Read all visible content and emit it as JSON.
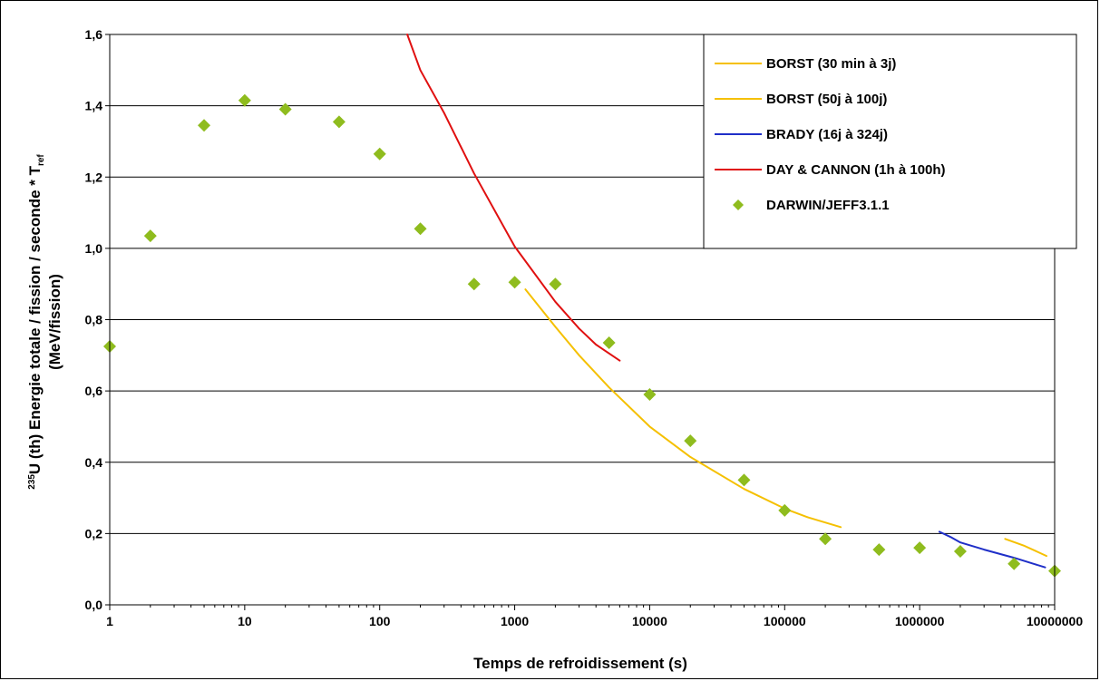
{
  "chart_data": {
    "type": "scatter",
    "xscale": "log",
    "xlim": [
      1,
      10000000
    ],
    "ylim": [
      0,
      1.6
    ],
    "grid": "horizontal",
    "legend_position": "top-right",
    "xlabel": "Temps de refroidissement (s)",
    "ylabel": {
      "sup": "235",
      "line1": "U (th) Energie totale / fission / seconde * T",
      "sub": "ref",
      "line2": "(MeV/fission)"
    },
    "x_ticks": [
      {
        "value": 1,
        "label": "1"
      },
      {
        "value": 10,
        "label": "10"
      },
      {
        "value": 100,
        "label": "100"
      },
      {
        "value": 1000,
        "label": "1000"
      },
      {
        "value": 10000,
        "label": "10000"
      },
      {
        "value": 100000,
        "label": "100000"
      },
      {
        "value": 1000000,
        "label": "1000000"
      },
      {
        "value": 10000000,
        "label": "10000000"
      }
    ],
    "y_ticks": [
      {
        "value": 0,
        "label": "0,0"
      },
      {
        "value": 0.2,
        "label": "0,2"
      },
      {
        "value": 0.4,
        "label": "0,4"
      },
      {
        "value": 0.6,
        "label": "0,6"
      },
      {
        "value": 0.8,
        "label": "0,8"
      },
      {
        "value": 1.0,
        "label": "1,0"
      },
      {
        "value": 1.2,
        "label": "1,2"
      },
      {
        "value": 1.4,
        "label": "1,4"
      },
      {
        "value": 1.6,
        "label": "1,6"
      }
    ],
    "series": [
      {
        "name": "BORST (30 min à 3j)",
        "kind": "line",
        "color": "#f5c000",
        "points": [
          [
            1200,
            0.885
          ],
          [
            2000,
            0.78
          ],
          [
            3000,
            0.7
          ],
          [
            5000,
            0.61
          ],
          [
            10000,
            0.5
          ],
          [
            20000,
            0.415
          ],
          [
            50000,
            0.325
          ],
          [
            100000,
            0.27
          ],
          [
            150000,
            0.245
          ],
          [
            260000,
            0.218
          ]
        ]
      },
      {
        "name": "BORST (50j à 100j)",
        "kind": "line",
        "color": "#f5c000",
        "points": [
          [
            4300000,
            0.185
          ],
          [
            6000000,
            0.165
          ],
          [
            8700000,
            0.137
          ]
        ]
      },
      {
        "name": "BRADY (16j à 324j)",
        "kind": "line",
        "color": "#1f2fc8",
        "points": [
          [
            1400000,
            0.205
          ],
          [
            1700000,
            0.19
          ],
          [
            2000000,
            0.175
          ],
          [
            3000000,
            0.155
          ],
          [
            5000000,
            0.132
          ],
          [
            7000000,
            0.115
          ],
          [
            8500000,
            0.105
          ]
        ]
      },
      {
        "name": "DAY & CANNON (1h à 100h)",
        "kind": "line",
        "color": "#e01010",
        "points": [
          [
            160,
            1.6
          ],
          [
            200,
            1.5
          ],
          [
            300,
            1.38
          ],
          [
            500,
            1.21
          ],
          [
            1000,
            1.005
          ],
          [
            2000,
            0.85
          ],
          [
            3000,
            0.775
          ],
          [
            4000,
            0.73
          ],
          [
            6000,
            0.685
          ]
        ]
      },
      {
        "name": "DARWIN/JEFF3.1.1",
        "kind": "scatter",
        "color": "#8fbc1e",
        "points": [
          [
            1,
            0.725
          ],
          [
            2,
            1.035
          ],
          [
            5,
            1.345
          ],
          [
            10,
            1.415
          ],
          [
            20,
            1.39
          ],
          [
            50,
            1.355
          ],
          [
            100,
            1.265
          ],
          [
            200,
            1.055
          ],
          [
            500,
            0.9
          ],
          [
            1000,
            0.905
          ],
          [
            2000,
            0.9
          ],
          [
            5000,
            0.735
          ],
          [
            10000,
            0.59
          ],
          [
            20000,
            0.46
          ],
          [
            50000,
            0.35
          ],
          [
            100000,
            0.265
          ],
          [
            200000,
            0.185
          ],
          [
            500000,
            0.155
          ],
          [
            1000000,
            0.16
          ],
          [
            2000000,
            0.15
          ],
          [
            5000000,
            0.115
          ],
          [
            10000000,
            0.095
          ]
        ]
      }
    ]
  }
}
